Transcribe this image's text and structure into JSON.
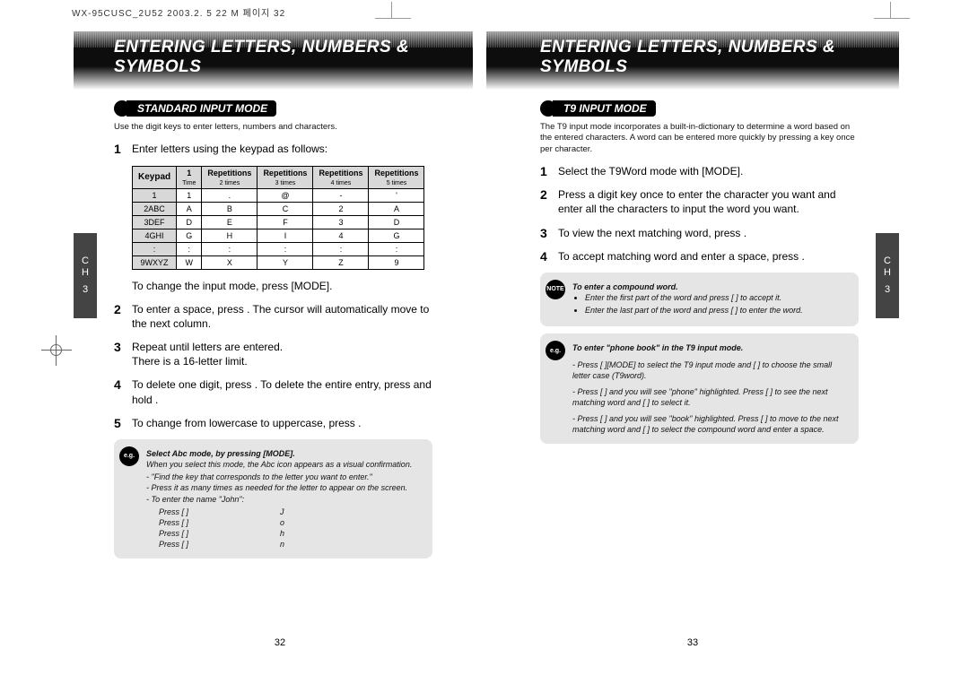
{
  "doc_header": "WX-95CUSC_2U52  2003.2.   5 22   M 페이지 32",
  "chapter_title": "ENTERING LETTERS, NUMBERS & SYMBOLS",
  "side_tab": {
    "label": "CH",
    "num": "3"
  },
  "left": {
    "section": "STANDARD INPUT MODE",
    "intro": "Use the digit keys to enter letters, numbers and characters.",
    "step1": "Enter letters using the keypad as follows:",
    "table": {
      "head_keypad": "Keypad",
      "heads": [
        "1\nTime",
        "Repetitions\n2 times",
        "Repetitions\n3 times",
        "Repetitions\n4 times",
        "Repetitions\n5 times"
      ],
      "rows": [
        [
          "1",
          "1",
          ".",
          "@",
          "-",
          "'"
        ],
        [
          "2ABC",
          "A",
          "B",
          "C",
          "2",
          "A"
        ],
        [
          "3DEF",
          "D",
          "E",
          "F",
          "3",
          "D"
        ],
        [
          "4GHI",
          "G",
          "H",
          "I",
          "4",
          "G"
        ],
        [
          ":",
          ":",
          ":",
          ":",
          ":",
          ":"
        ],
        [
          "9WXYZ",
          "W",
          "X",
          "Y",
          "Z",
          "9"
        ]
      ]
    },
    "after_table": "To change the input mode, press      [MODE].",
    "step2": "To enter a space, press       . The cursor will automatically move to the next column.",
    "step3": "Repeat until letters are entered.\nThere is a 16-letter limit.",
    "step4": "To delete one digit, press       . To delete the entire entry, press and hold       .",
    "step5": "To change from lowercase to uppercase, press       .",
    "eg": {
      "title": "Select Abc mode, by pressing      [MODE].",
      "line1": "When you select this mode, the Abc icon appears as a visual confirmation.",
      "b1": "\"Find the key that corresponds to the letter you want to enter.\"",
      "b2": "Press it as many times as needed for the letter to appear on the screen.",
      "b3": "To enter the name \"John\":",
      "rows": [
        [
          "Press [      ]",
          "J"
        ],
        [
          "Press [            ]",
          "o"
        ],
        [
          "Press [         ]",
          "h"
        ],
        [
          "Press [         ]",
          "n"
        ]
      ]
    },
    "page_num": "32"
  },
  "right": {
    "section": "T9 INPUT MODE",
    "intro": "The T9 input mode incorporates a built-in-dictionary to determine a word based on the entered characters. A word can be entered more quickly by pressing a key once per character.",
    "step1": "Select the T9Word mode with      [MODE].",
    "step2": "Press a digit key once to enter the character you want and enter all the characters to input the word you want.",
    "step3": "To view the next matching word, press       .",
    "step4": "To accept matching word and enter a space, press       .",
    "note": {
      "title": "To enter a compound word.",
      "b1": "Enter the first part of the word and press [     ] to accept it.",
      "b2": "Enter the last part of the word and press [     ] to enter the word."
    },
    "eg": {
      "title": "To enter \"phone book\" in the T9 input mode.",
      "l1a": "Press [     ][MODE] to select the T9 input mode and [     ] to choose the small letter case (T9word).",
      "l2a": "Press [                    ] and you will see \"phone\" highlighted. Press [     ] to see the next matching word and [     ] to select it.",
      "l3a": "Press [              ] and you will see \"book\" highlighted. Press [     ] to move to the next matching word and [     ] to select the compound word and enter a space."
    },
    "page_num": "33"
  }
}
